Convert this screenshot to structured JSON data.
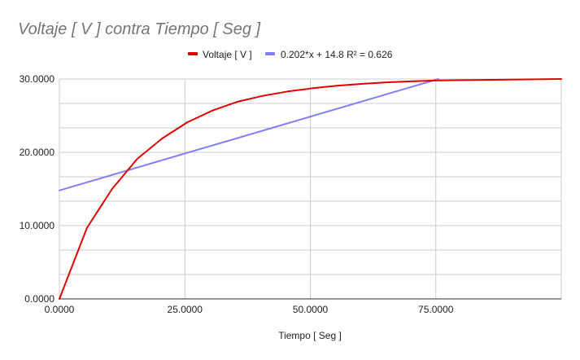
{
  "chart_data": {
    "type": "line",
    "title": "Voltaje [ V ] contra Tiempo [ Seg ]",
    "xlabel": "Tiempo [ Seg ]",
    "ylabel": "",
    "xlim": [
      0,
      100
    ],
    "ylim": [
      0,
      30
    ],
    "grid": true,
    "legend_position": "top",
    "x_tick_labels": [
      "0.0000",
      "25.0000",
      "50.0000",
      "75.0000"
    ],
    "y_tick_labels": [
      "0.0000",
      "10.0000",
      "20.0000",
      "30.0000"
    ],
    "series": [
      {
        "name": "Voltaje [ V ]",
        "color": "#e00000",
        "x": [
          0,
          5.5,
          10.5,
          15.5,
          20.5,
          25.5,
          30.5,
          35.5,
          40.5,
          45.5,
          50.5,
          55.5,
          60.5,
          65.5,
          70.5,
          75.5,
          100
        ],
        "y": [
          0,
          9.7,
          15.0,
          19.1,
          21.9,
          24.1,
          25.7,
          26.9,
          27.7,
          28.3,
          28.75,
          29.1,
          29.35,
          29.55,
          29.7,
          29.8,
          30.0
        ]
      },
      {
        "name": "0.202*x + 14.8 R² = 0.626",
        "color": "#8080ff",
        "x": [
          0,
          75.5
        ],
        "y": [
          14.8,
          30.0
        ]
      }
    ]
  }
}
